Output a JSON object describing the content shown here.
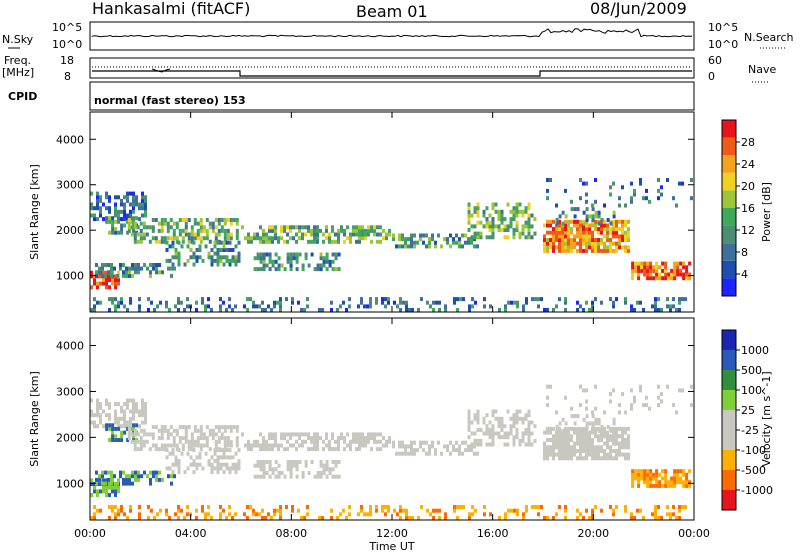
{
  "header": {
    "site": "Hankasalmi (fitACF)",
    "beam": "Beam 01",
    "date": "08/Jun/2009"
  },
  "strips": {
    "nsky_label": "N.Sky",
    "nsearch_label": "N.Search",
    "nsky_ticks": [
      "10^5",
      "10^0"
    ],
    "nsearch_ticks": [
      "10^5",
      "10^0"
    ],
    "freq_label_1": "Freq.",
    "freq_label_2": "[MHz]",
    "freq_ticks": [
      "18",
      "8"
    ],
    "nave_label": "Nave",
    "nave_ticks": [
      "60",
      "0"
    ],
    "cpid_label": "CPID",
    "cpid_text": "normal (fast stereo) 153"
  },
  "colors": {
    "power": [
      "#1b26ff",
      "#1e4fb0",
      "#3f6f9b",
      "#4a8e73",
      "#3fa85a",
      "#9ec43a",
      "#f0d020",
      "#f5a21c",
      "#ef5a17",
      "#e8141c"
    ],
    "velocity": [
      "#e8141c",
      "#ff6a00",
      "#ffb000",
      "#c8c8c0",
      "#c8c8c0",
      "#7fcf3a",
      "#2f8f3a",
      "#2a5ab8",
      "#1b26b0"
    ],
    "ground_scatter": "#c8c8c0"
  },
  "chart_data": [
    {
      "type": "heatmap",
      "panel": "power",
      "ylabel": "Slant Range [km]",
      "y_ticks": [
        "4000",
        "3000",
        "2000",
        "1000"
      ],
      "ylim": [
        200,
        4600
      ],
      "x_ticks": [
        "00:00",
        "04:00",
        "08:00",
        "12:00",
        "16:00",
        "20:00",
        "00:00"
      ],
      "xlim_hours": [
        0,
        24
      ],
      "colorbar_label": "Power [dB]",
      "colorbar_ticks": [
        "28",
        "24",
        "20",
        "16",
        "12",
        "8",
        "4"
      ]
    },
    {
      "type": "heatmap",
      "panel": "velocity",
      "ylabel": "Slant Range [km]",
      "y_ticks": [
        "4000",
        "3000",
        "2000",
        "1000"
      ],
      "ylim": [
        200,
        4600
      ],
      "x_ticks": [
        "00:00",
        "04:00",
        "08:00",
        "12:00",
        "16:00",
        "20:00",
        "00:00"
      ],
      "xlabel": "Time UT",
      "colorbar_label": "Velocity [m s^-1]",
      "colorbar_ticks": [
        "1000",
        "500",
        "100",
        "25",
        "-25",
        "-100",
        "-500",
        "-1000"
      ]
    }
  ]
}
